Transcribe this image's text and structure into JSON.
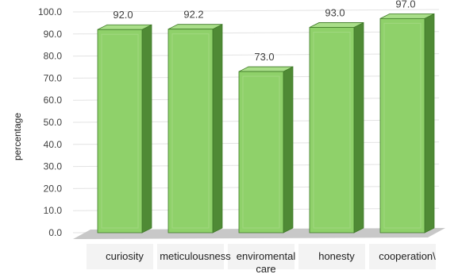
{
  "chart_data": {
    "type": "bar",
    "title": "",
    "xlabel": "",
    "ylabel": "percentage",
    "categories": [
      "curiosity",
      "meticulousness",
      "enviromental care",
      "honesty",
      "cooperation\\"
    ],
    "category_lines": [
      [
        "curiosity"
      ],
      [
        "meticulousness"
      ],
      [
        "enviromental",
        "care"
      ],
      [
        "honesty"
      ],
      [
        "cooperation\\"
      ]
    ],
    "values": [
      92.0,
      92.2,
      73.0,
      93.0,
      97.0
    ],
    "value_labels": [
      "92.0",
      "92.2",
      "73.0",
      "93.0",
      "97.0"
    ],
    "ylim": [
      0,
      100
    ],
    "yticks": [
      "0.0",
      "10.0",
      "20.0",
      "30.0",
      "40.0",
      "50.0",
      "60.0",
      "70.0",
      "80.0",
      "90.0",
      "100.0"
    ],
    "grid": true,
    "legend": "none",
    "colors": {
      "bar_front": "#8fd16a",
      "bar_side": "#4f8a35",
      "bar_top": "#a9de89",
      "bar_edge": "#3f7a28",
      "floor": "#c8c8c8",
      "grid": "#e3e3e3",
      "label_box": "#f3f3f3"
    }
  }
}
